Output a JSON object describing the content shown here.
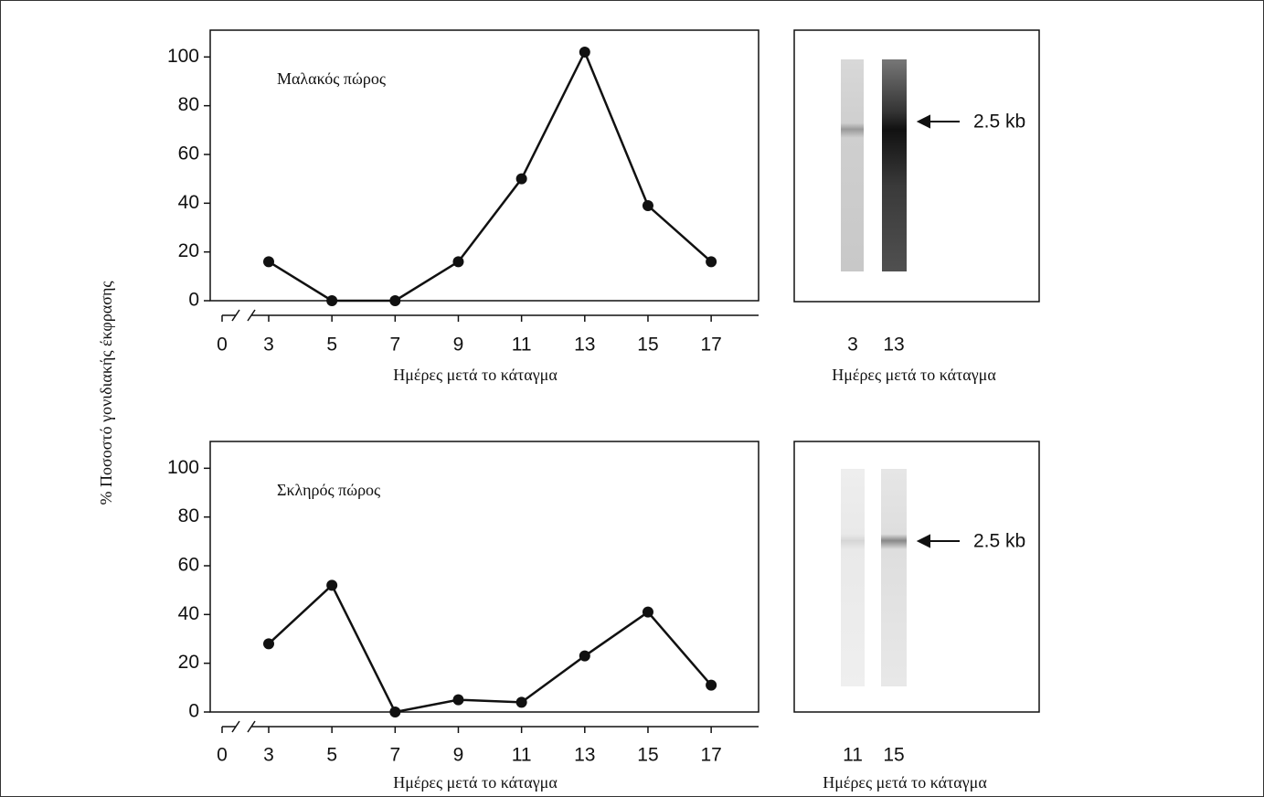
{
  "y_label": "% Ποσοστό γονιδιακής έκφρασης",
  "chart_data": [
    {
      "type": "line",
      "annotation": "Μαλακός πώρος",
      "x_label": "Ημέρες μετά το κάταγμα",
      "x": [
        3,
        5,
        7,
        9,
        11,
        13,
        15,
        17
      ],
      "series": [
        {
          "color": "#111111",
          "values": [
            16,
            0,
            0,
            16,
            50,
            102,
            39,
            16
          ]
        }
      ],
      "xlim": [
        0,
        18.5
      ],
      "xticks": [
        0,
        3,
        5,
        7,
        9,
        11,
        13,
        15,
        17
      ],
      "x_break": true,
      "ylim": [
        0,
        111
      ],
      "yticks": [
        0,
        20,
        40,
        60,
        80,
        100
      ]
    },
    {
      "type": "line",
      "annotation": "Σκληρός πώρος",
      "x_label": "Ημέρες μετά το κάταγμα",
      "x": [
        3,
        5,
        7,
        9,
        11,
        13,
        15,
        17
      ],
      "series": [
        {
          "color": "#111111",
          "values": [
            28,
            52,
            0,
            5,
            4,
            23,
            41,
            11
          ]
        }
      ],
      "xlim": [
        0,
        18.5
      ],
      "xticks": [
        0,
        3,
        5,
        7,
        9,
        11,
        13,
        15,
        17
      ],
      "x_break": true,
      "ylim": [
        0,
        111
      ],
      "yticks": [
        0,
        20,
        40,
        60,
        80,
        100
      ]
    }
  ],
  "blots": [
    {
      "lanes": [
        "3",
        "13"
      ],
      "band_label": "2.5 kb",
      "x_label": "Ημέρες μετά το κάταγμα"
    },
    {
      "lanes": [
        "11",
        "15"
      ],
      "band_label": "2.5 kb",
      "x_label": "Ημέρες μετά το κάταγμα"
    }
  ]
}
